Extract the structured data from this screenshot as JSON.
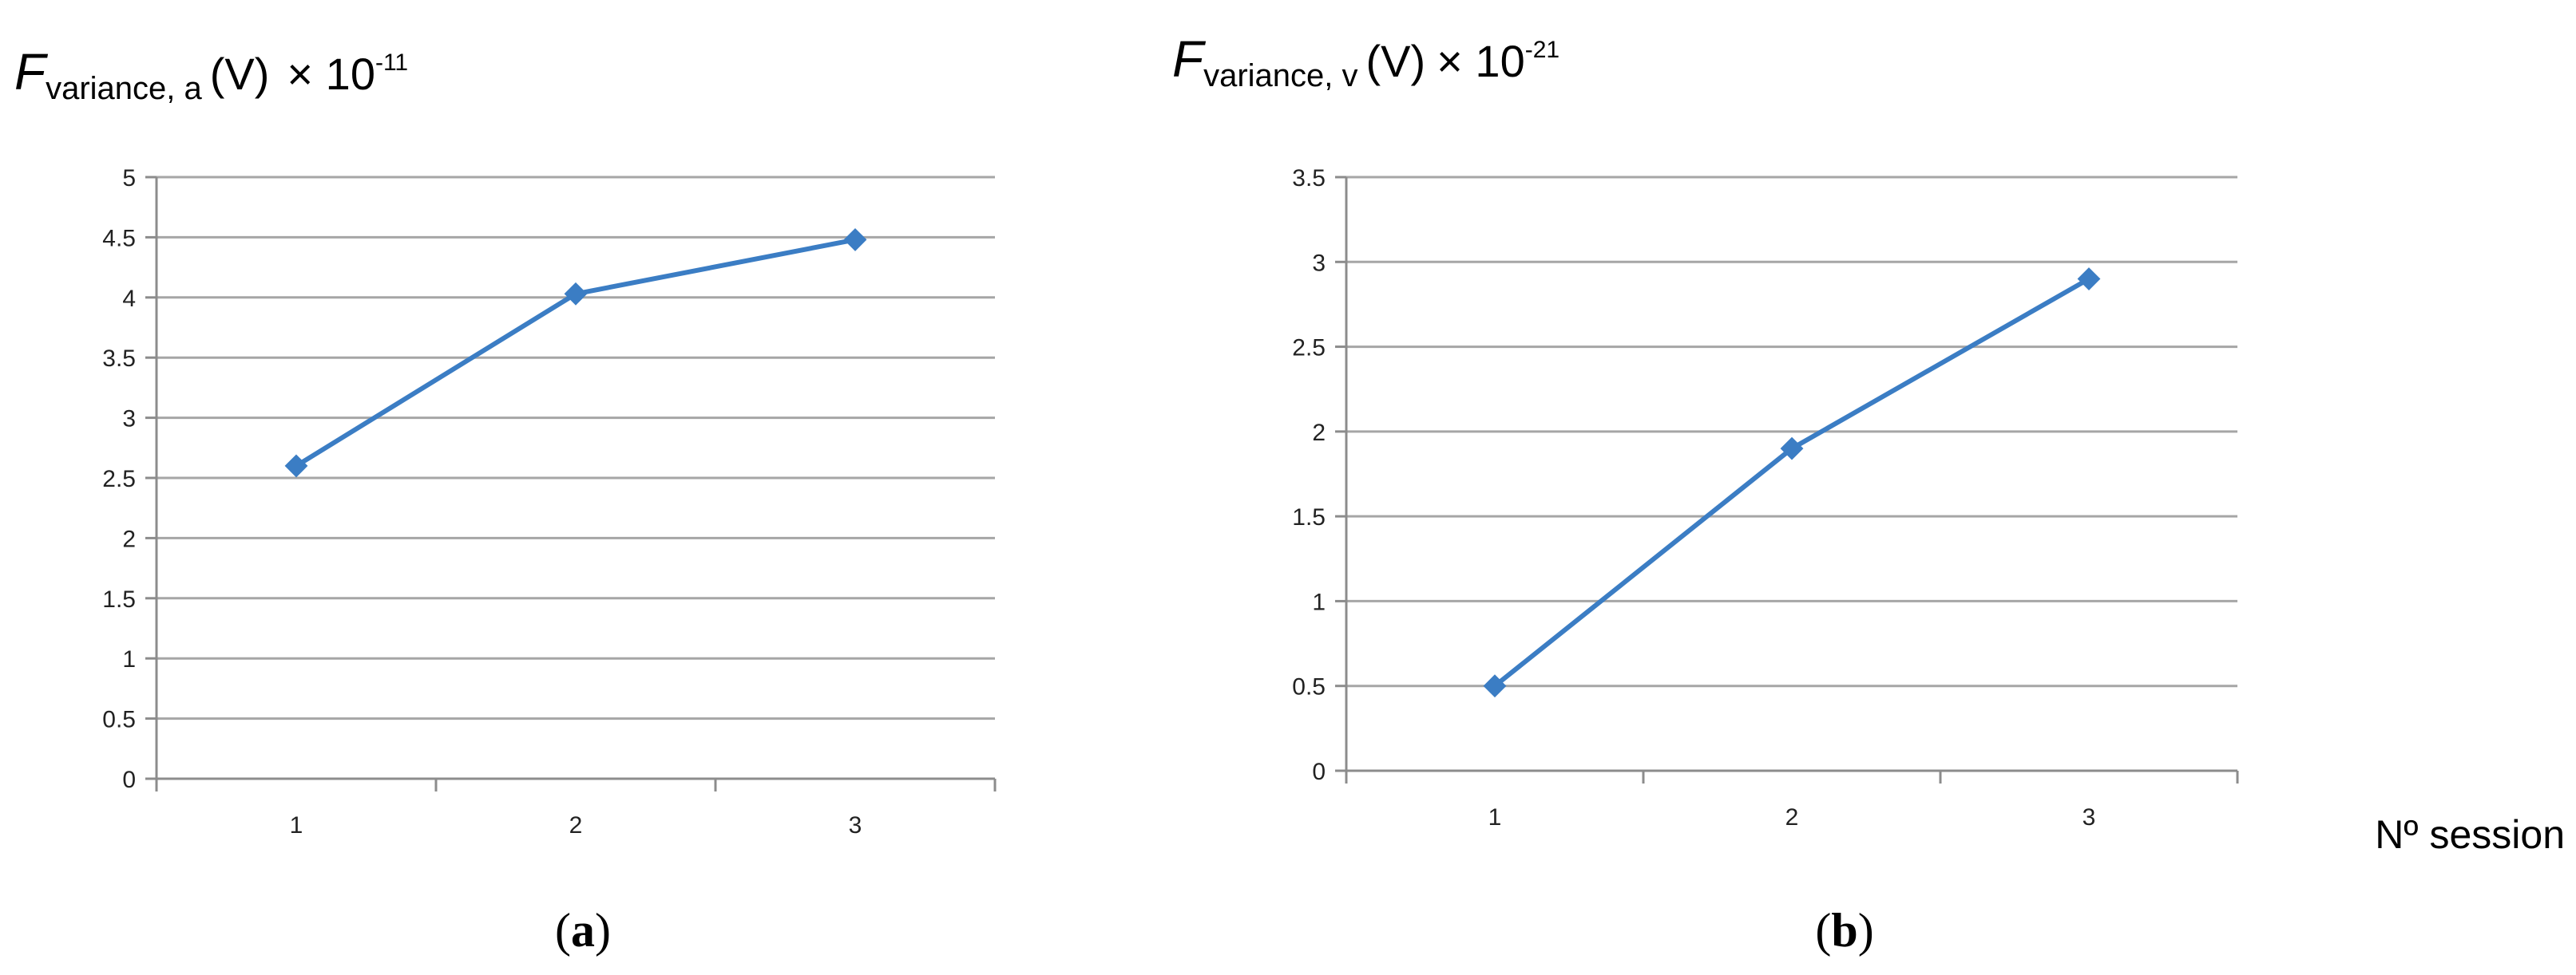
{
  "chart_data": [
    {
      "type": "line",
      "panel": "a",
      "ylabel": {
        "symbol": "F",
        "subscript": "variance, a",
        "unit": "(V)",
        "multiplier": "× 10",
        "exponent": "-11"
      },
      "xlabel": "",
      "categories": [
        "1",
        "2",
        "3"
      ],
      "series": [
        {
          "values": [
            2.6,
            4.03,
            4.48
          ],
          "color": "#3b7dc4"
        }
      ],
      "ylim": [
        0,
        5
      ],
      "yticks": [
        "0",
        "0.5",
        "1",
        "1.5",
        "2",
        "2.5",
        "3",
        "3.5",
        "4",
        "4.5",
        "5"
      ],
      "grid": true,
      "marker": "diamond"
    },
    {
      "type": "line",
      "panel": "b",
      "ylabel": {
        "symbol": "F",
        "subscript": "variance, v",
        "unit": "(V)",
        "multiplier": "× 10",
        "exponent": "-21"
      },
      "xlabel": "Nº session",
      "categories": [
        "1",
        "2",
        "3"
      ],
      "series": [
        {
          "values": [
            0.5,
            1.9,
            2.9
          ],
          "color": "#3b7dc4"
        }
      ],
      "ylim": [
        0,
        3.5
      ],
      "yticks": [
        "0",
        "0.5",
        "1",
        "1.5",
        "2",
        "2.5",
        "3",
        "3.5"
      ],
      "grid": true,
      "marker": "diamond"
    }
  ],
  "panels": [
    {
      "label_open": "(",
      "label_letter": "a",
      "label_close": ")"
    },
    {
      "label_open": "(",
      "label_letter": "b",
      "label_close": ")"
    }
  ],
  "colors": {
    "grid": "#a6a6a6",
    "axis": "#8c8c8c",
    "line": "#3b7dc4"
  }
}
